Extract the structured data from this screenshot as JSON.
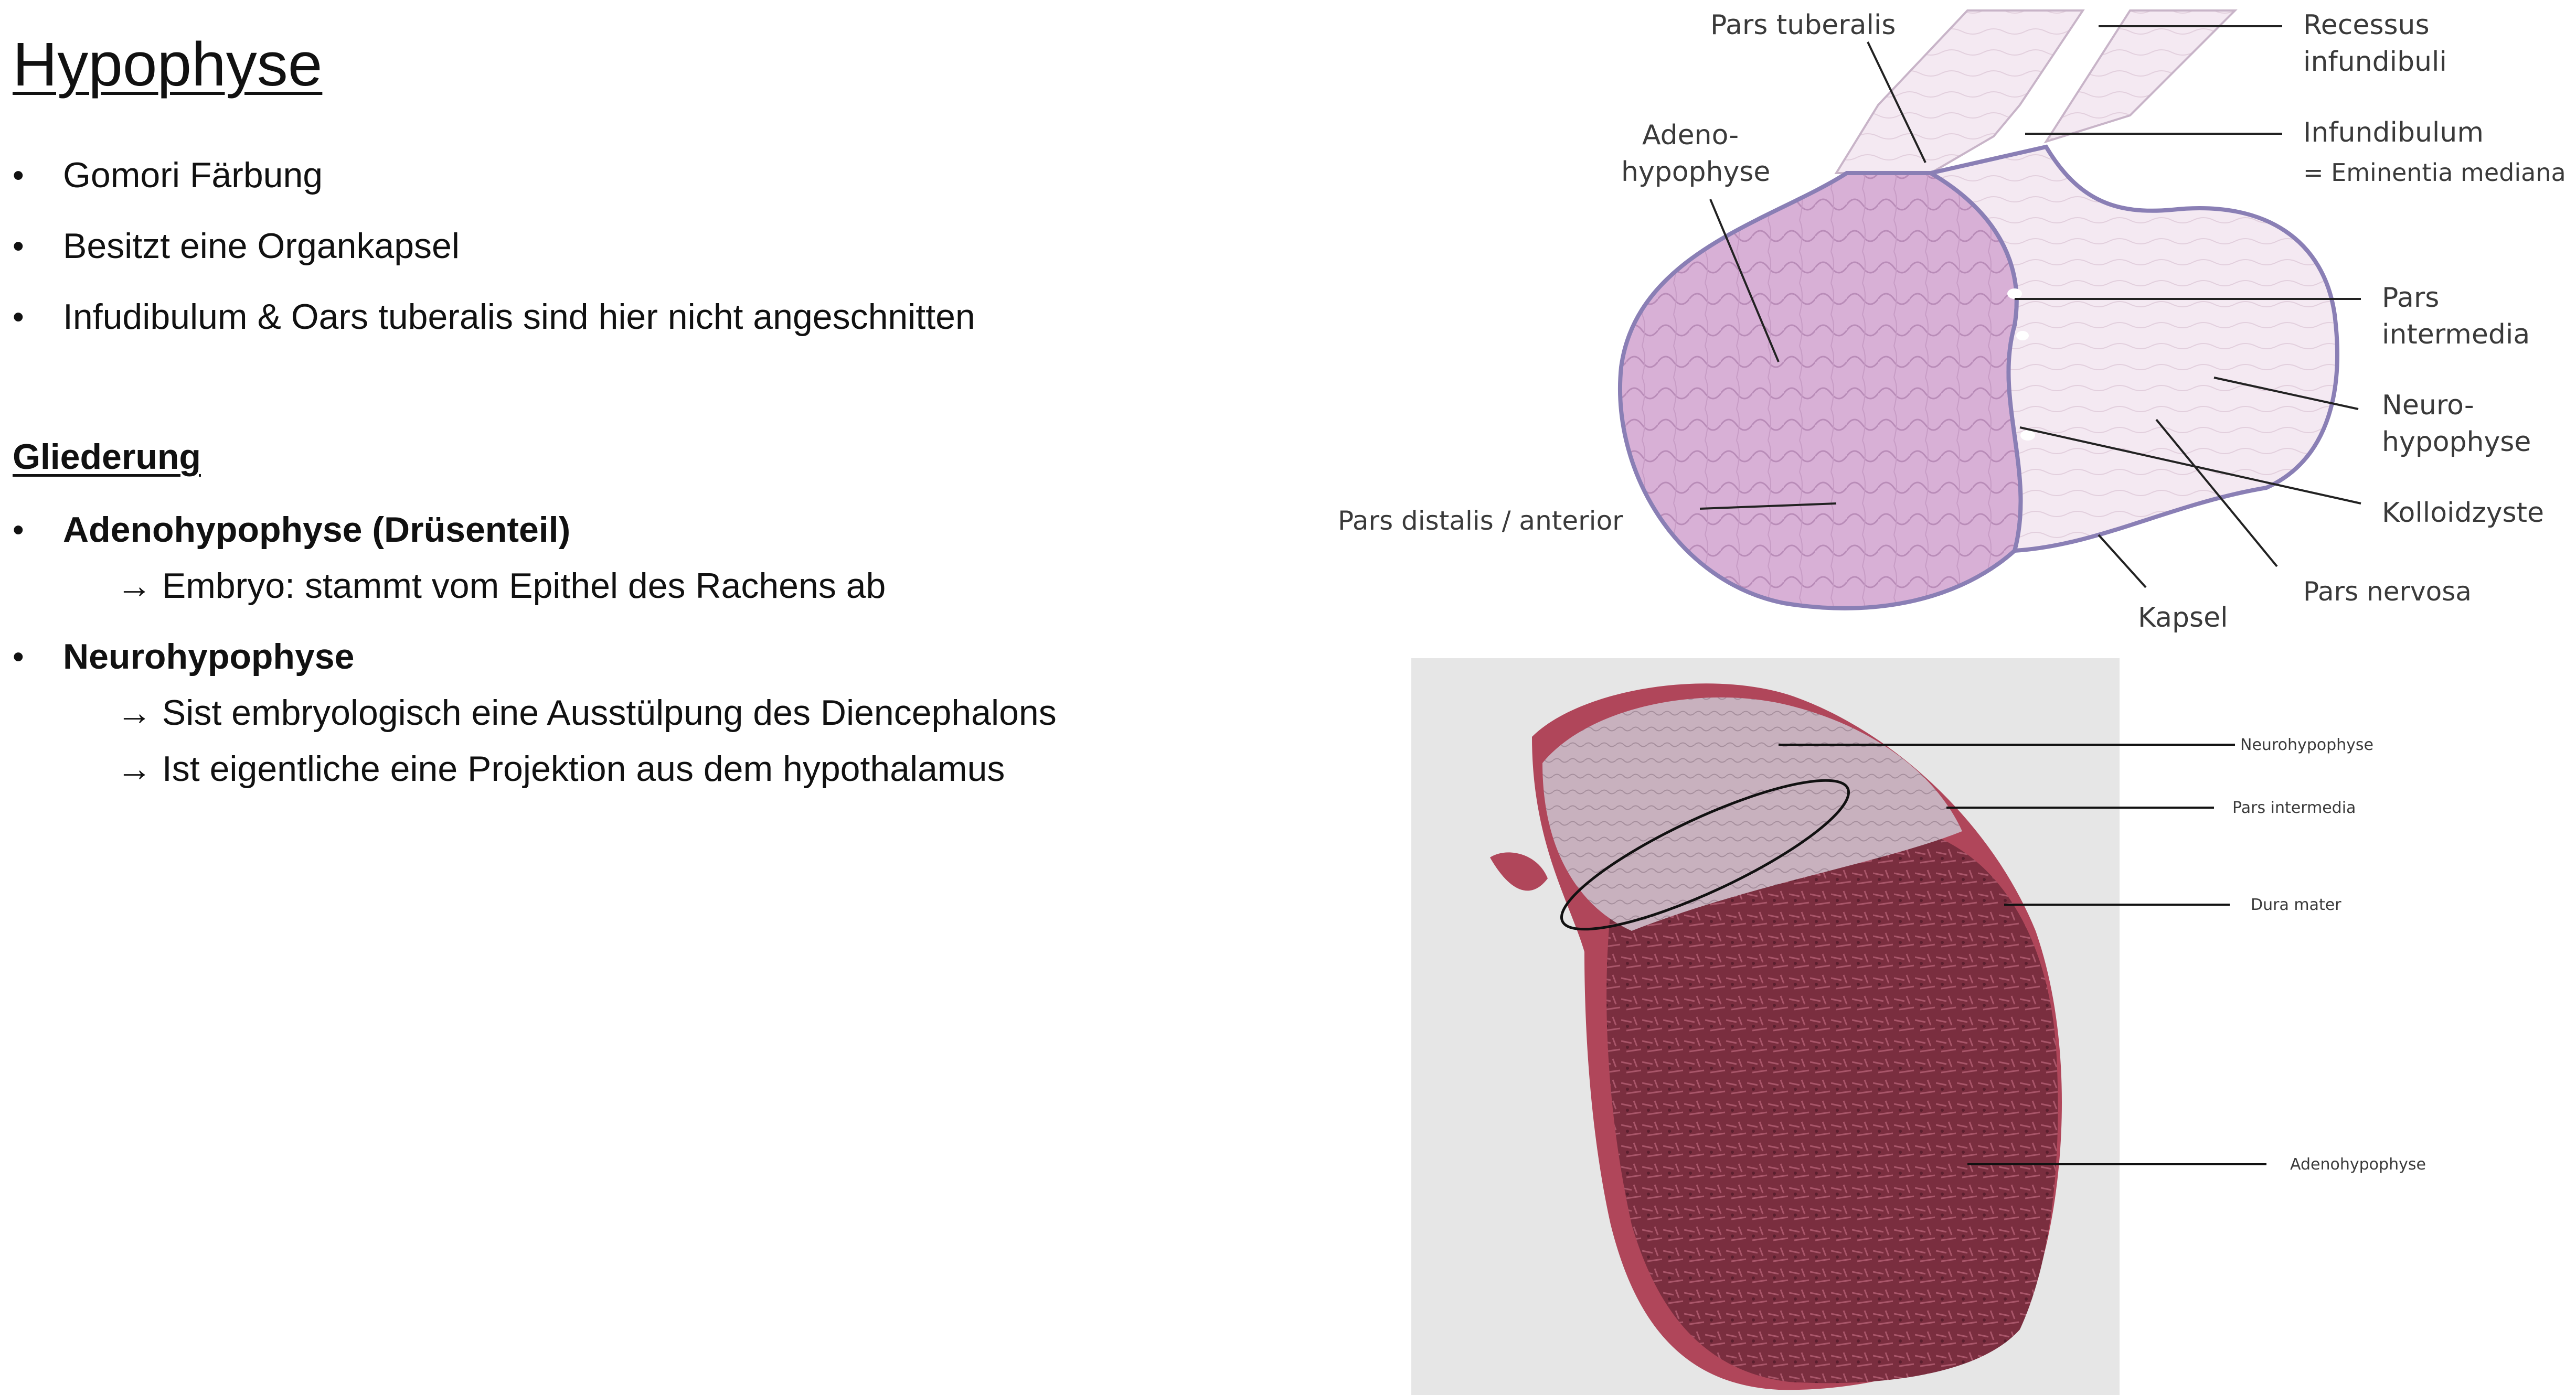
{
  "slide": {
    "title": "Hypophyse",
    "bullets": [
      "Gomori Färbung",
      "Besitzt eine Organkapsel",
      "Infudibulum & Oars tuberalis sind hier nicht angeschnitten"
    ],
    "section_heading": "Gliederung",
    "gliederung": [
      {
        "label": "Adenohypophyse (Drüsenteil)",
        "subs": [
          "→ Embryo: stammt vom Epithel des Rachens ab"
        ]
      },
      {
        "label": "Neurohypophyse",
        "subs": [
          "→ Sist embryologisch eine Ausstülpung des Diencephalons",
          "→ Ist eigentliche eine Projektion aus dem hypothalamus"
        ]
      }
    ]
  },
  "diagram": {
    "labels": {
      "pars_tuberalis": "Pars tuberalis",
      "recessus_1": "Recessus",
      "recessus_2": "infundibuli",
      "adeno_1": "Adeno-",
      "adeno_2": "hypophyse",
      "infundibulum": "Infundibulum",
      "eminentia": "= Eminentia mediana",
      "pars_intermedia_1": "Pars",
      "pars_intermedia_2": "intermedia",
      "neuro_1": "Neuro-",
      "neuro_2": "hypophyse",
      "kolloidzyste": "Kolloidzyste",
      "pars_distalis": "Pars distalis / anterior",
      "pars_nervosa": "Pars nervosa",
      "kapsel": "Kapsel"
    },
    "colors": {
      "adeno": "#d9b3d9",
      "neuro": "#f3e7f1",
      "capsule": "#8a7fb5"
    }
  },
  "micrograph": {
    "labels": {
      "neurohypophyse": "Neurohypophyse",
      "pars_intermedia": "Pars intermedia",
      "dura_mater": "Dura mater",
      "adenohypophyse": "Adenohypophyse"
    },
    "colors": {
      "background": "#e6e6e6",
      "adeno": "#7a2e3f",
      "neuro": "#c9b2bf",
      "dura": "#b0465a"
    }
  }
}
